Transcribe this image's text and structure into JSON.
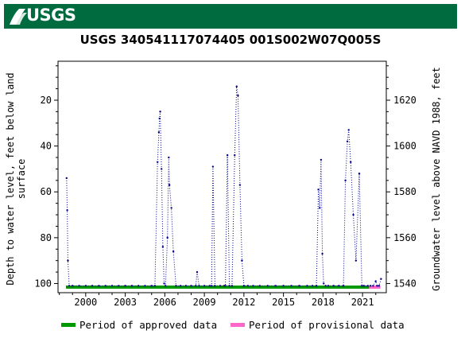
{
  "header": {
    "logo_text": "USGS"
  },
  "chart_data": {
    "type": "line",
    "title": "USGS 340541117074405 001S002W07Q005S",
    "ylabel_left": [
      "Depth to water level, feet below land",
      "surface"
    ],
    "ylabel_right": "Groundwater level above NAVD 1988, feet",
    "x_ticks": [
      "2000",
      "2003",
      "2006",
      "2009",
      "2012",
      "2015",
      "2018",
      "2021"
    ],
    "x_tick_years": [
      2000,
      2003,
      2006,
      2009,
      2012,
      2015,
      2018,
      2021
    ],
    "xlim": [
      1997.9,
      2022.8
    ],
    "y_left_ticks": [
      20,
      40,
      60,
      80,
      100
    ],
    "y_left_lim": [
      3,
      104
    ],
    "y_left_inverted": true,
    "y_right_ticks": [
      1620,
      1600,
      1580,
      1560,
      1540
    ],
    "series_color": "#00008b",
    "series": [
      {
        "x": [
          1998.55,
          1998.6,
          1998.65,
          1998.75,
          1999.0,
          1999.5,
          2000.0,
          2000.5,
          2001.0,
          2001.5,
          2002.0,
          2002.5,
          2003.0,
          2003.5,
          2004.0,
          2004.5,
          2005.0,
          2005.25,
          2005.45,
          2005.55,
          2005.6,
          2005.65,
          2005.75,
          2005.85,
          2005.95,
          2006.05,
          2006.2,
          2006.3,
          2006.35,
          2006.5,
          2006.65,
          2006.85,
          2007.2,
          2007.6,
          2008.0,
          2008.35,
          2008.45,
          2008.6,
          2009.0,
          2009.4,
          2009.55,
          2009.65,
          2009.8,
          2010.2,
          2010.5,
          2010.6,
          2010.75,
          2010.9,
          2011.1,
          2011.3,
          2011.45,
          2011.55,
          2011.7,
          2011.85,
          2012.0,
          2012.3,
          2012.7,
          2013.2,
          2013.8,
          2014.4,
          2015.0,
          2015.6,
          2016.2,
          2016.8,
          2017.2,
          2017.5,
          2017.65,
          2017.75,
          2017.85,
          2017.95,
          2018.05,
          2018.2,
          2018.4,
          2018.8,
          2019.2,
          2019.55,
          2019.7,
          2019.85,
          2019.95,
          2020.1,
          2020.3,
          2020.5,
          2020.75,
          2020.95,
          2021.1,
          2021.4,
          2021.6,
          2021.8,
          2022.0,
          2022.1,
          2022.25,
          2022.4
        ],
        "y": [
          54,
          68,
          90,
          101,
          101,
          101,
          101,
          101,
          101,
          101,
          101,
          101,
          101,
          101,
          101,
          101,
          101,
          101,
          47,
          34,
          28,
          25,
          50,
          84,
          100,
          101,
          80,
          45,
          57,
          67,
          86,
          101,
          101,
          101,
          101,
          101,
          95,
          101,
          101,
          101,
          101,
          49,
          101,
          101,
          101,
          101,
          44,
          101,
          101,
          44,
          14,
          18,
          57,
          90,
          101,
          101,
          101,
          101,
          101,
          101,
          101,
          101,
          101,
          101,
          101,
          101,
          59,
          67,
          46,
          87,
          100,
          101,
          101,
          101,
          101,
          101,
          55,
          38,
          33,
          47,
          70,
          90,
          52,
          101,
          101,
          101,
          101,
          101,
          99,
          101,
          101,
          98
        ]
      }
    ],
    "periods": [
      {
        "label": "Period of approved data",
        "color": "#009900",
        "start": 1998.5,
        "end": 2021.5
      },
      {
        "label": "Period of provisional data",
        "color": "#ff66cc",
        "start": 2021.5,
        "end": 2022.35
      }
    ]
  }
}
